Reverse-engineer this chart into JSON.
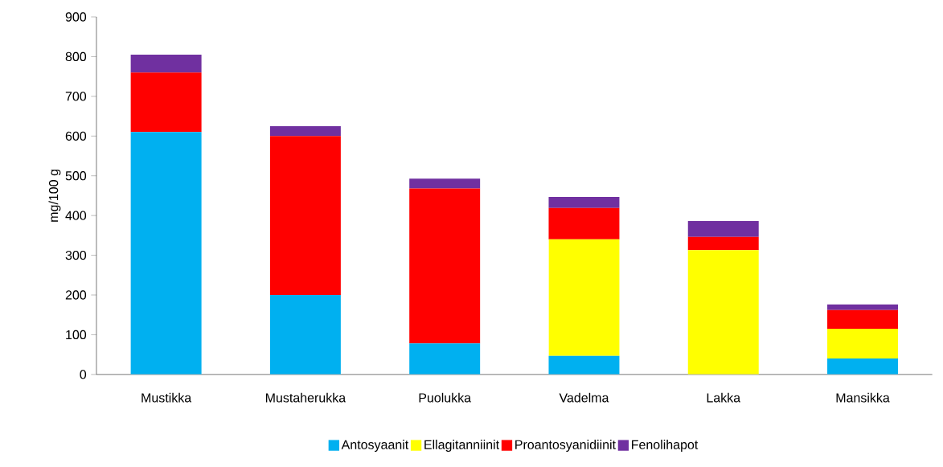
{
  "chart_data": {
    "type": "bar",
    "stacked": true,
    "ylabel": "mg/100 g",
    "categories": [
      "Mustikka",
      "Mustaherukka",
      "Puolukka",
      "Vadelma",
      "Lakka",
      "Mansikka"
    ],
    "series": [
      {
        "name": "Antosyaanit",
        "color": "#00b0f0",
        "values": [
          610,
          200,
          78,
          47,
          0,
          40
        ]
      },
      {
        "name": "Ellagitanniinit",
        "color": "#ffff00",
        "values": [
          0,
          0,
          0,
          293,
          313,
          75
        ]
      },
      {
        "name": "Proantosyanidiinit",
        "color": "#ff0000",
        "values": [
          150,
          400,
          390,
          79,
          33,
          47
        ]
      },
      {
        "name": "Fenolihapot",
        "color": "#7030a0",
        "values": [
          45,
          25,
          25,
          28,
          40,
          14
        ]
      }
    ],
    "ylim": [
      0,
      900
    ],
    "yticks": [
      0,
      100,
      200,
      300,
      400,
      500,
      600,
      700,
      800,
      900
    ],
    "legend": "bottom"
  }
}
